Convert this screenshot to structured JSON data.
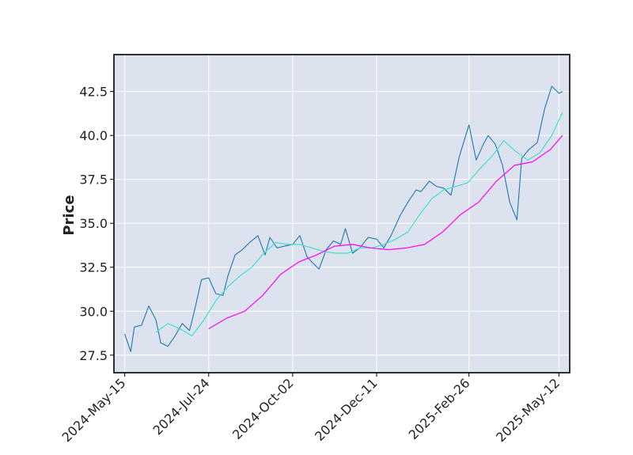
{
  "chart_data": {
    "type": "line",
    "title": "",
    "xlabel": "",
    "ylabel": "Price",
    "ylim": [
      26.5,
      44.6
    ],
    "xlim": [
      "2024-05-06",
      "2025-05-21"
    ],
    "grid": true,
    "legend": "none",
    "colors": {
      "plot_background": "#dde2ef",
      "grid": "#ffffff",
      "frame": "#000000",
      "series": [
        "#1f77b4",
        "#40e0d0",
        "#ff00ff"
      ]
    },
    "x_ticks": [
      "2024-May-15",
      "2024-Jul-24",
      "2024-Oct-02",
      "2024-Dec-11",
      "2025-Feb-26",
      "2025-May-12"
    ],
    "x_tick_dates": [
      "2024-05-15",
      "2024-07-24",
      "2024-10-02",
      "2024-12-11",
      "2025-02-26",
      "2025-05-12"
    ],
    "y_ticks": [
      "27.5",
      "30.0",
      "32.5",
      "35.0",
      "37.5",
      "40.0",
      "42.5"
    ],
    "series": [
      {
        "type": "close",
        "x": [
          "2024-05-15",
          "2024-05-20",
          "2024-05-23",
          "2024-05-29",
          "2024-06-04",
          "2024-06-10",
          "2024-06-14",
          "2024-06-20",
          "2024-06-26",
          "2024-07-02",
          "2024-07-08",
          "2024-07-12",
          "2024-07-18",
          "2024-07-24",
          "2024-07-30",
          "2024-08-05",
          "2024-08-09",
          "2024-08-15",
          "2024-08-21",
          "2024-08-27",
          "2024-09-03",
          "2024-09-09",
          "2024-09-13",
          "2024-09-19",
          "2024-09-25",
          "2024-10-02",
          "2024-10-08",
          "2024-10-14",
          "2024-10-18",
          "2024-10-24",
          "2024-10-30",
          "2024-11-05",
          "2024-11-11",
          "2024-11-15",
          "2024-11-21",
          "2024-11-27",
          "2024-12-04",
          "2024-12-11",
          "2024-12-17",
          "2024-12-23",
          "2024-12-31",
          "2025-01-07",
          "2025-01-13",
          "2025-01-17",
          "2025-01-24",
          "2025-01-30",
          "2025-02-05",
          "2025-02-11",
          "2025-02-18",
          "2025-02-26",
          "2025-03-04",
          "2025-03-10",
          "2025-03-14",
          "2025-03-20",
          "2025-03-26",
          "2025-04-01",
          "2025-04-07",
          "2025-04-11",
          "2025-04-17",
          "2025-04-24",
          "2025-04-30",
          "2025-05-06",
          "2025-05-12",
          "2025-05-15"
        ],
        "values": [
          28.7,
          27.7,
          29.1,
          29.2,
          30.3,
          29.5,
          28.2,
          28.0,
          28.6,
          29.3,
          28.9,
          30.0,
          31.8,
          31.9,
          31.0,
          30.9,
          32.0,
          33.2,
          33.5,
          33.9,
          34.3,
          33.2,
          34.2,
          33.6,
          33.7,
          33.8,
          34.3,
          33.1,
          32.8,
          32.4,
          33.5,
          34.0,
          33.8,
          34.7,
          33.3,
          33.6,
          34.2,
          34.1,
          33.6,
          34.3,
          35.5,
          36.3,
          36.9,
          36.8,
          37.4,
          37.1,
          37.0,
          36.6,
          38.8,
          40.6,
          38.6,
          39.5,
          40.0,
          39.5,
          38.3,
          36.2,
          35.2,
          38.7,
          39.2,
          39.6,
          41.5,
          42.8,
          42.4,
          42.5
        ]
      },
      {
        "type": "moving-average-short",
        "x": [
          "2024-06-10",
          "2024-06-20",
          "2024-06-30",
          "2024-07-10",
          "2024-07-20",
          "2024-07-30",
          "2024-08-09",
          "2024-08-19",
          "2024-08-29",
          "2024-09-08",
          "2024-09-18",
          "2024-09-28",
          "2024-10-08",
          "2024-10-18",
          "2024-10-28",
          "2024-11-07",
          "2024-11-17",
          "2024-11-27",
          "2024-12-07",
          "2024-12-17",
          "2024-12-27",
          "2025-01-06",
          "2025-01-16",
          "2025-01-26",
          "2025-02-05",
          "2025-02-15",
          "2025-02-25",
          "2025-03-07",
          "2025-03-17",
          "2025-03-27",
          "2025-04-06",
          "2025-04-16",
          "2025-04-26",
          "2025-05-06",
          "2025-05-15"
        ],
        "values": [
          28.8,
          29.3,
          29.0,
          28.6,
          29.5,
          30.6,
          31.4,
          32.0,
          32.5,
          33.3,
          33.9,
          33.8,
          33.8,
          33.6,
          33.4,
          33.3,
          33.3,
          33.6,
          33.6,
          33.8,
          34.1,
          34.5,
          35.5,
          36.4,
          36.9,
          37.1,
          37.3,
          38.1,
          38.8,
          39.7,
          39.1,
          38.6,
          39.0,
          40.0,
          41.3
        ]
      },
      {
        "type": "moving-average-long",
        "x": [
          "2024-07-24",
          "2024-08-08",
          "2024-08-23",
          "2024-09-07",
          "2024-09-22",
          "2024-10-07",
          "2024-10-22",
          "2024-11-06",
          "2024-11-21",
          "2024-12-06",
          "2024-12-21",
          "2025-01-05",
          "2025-01-20",
          "2025-02-04",
          "2025-02-19",
          "2025-03-06",
          "2025-03-21",
          "2025-04-05",
          "2025-04-20",
          "2025-05-05",
          "2025-05-15"
        ],
        "values": [
          29.0,
          29.6,
          30.0,
          30.9,
          32.1,
          32.8,
          33.2,
          33.7,
          33.8,
          33.6,
          33.5,
          33.6,
          33.8,
          34.5,
          35.5,
          36.2,
          37.4,
          38.3,
          38.5,
          39.2,
          40.0
        ]
      }
    ]
  }
}
